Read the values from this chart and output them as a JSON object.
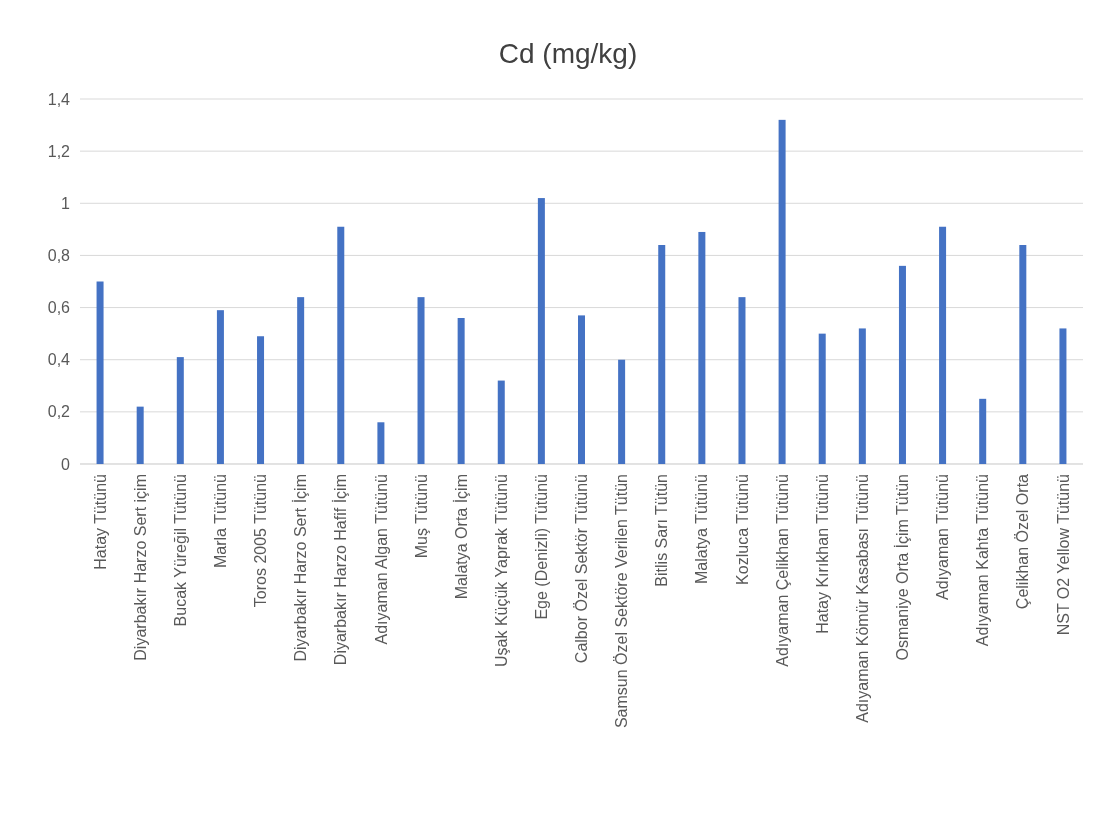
{
  "chart_data": {
    "type": "bar",
    "title": "Cd (mg/kg)",
    "categories": [
      "Hatay Tütünü",
      "Diyarbakır Harzo Sert içim",
      "Bucak Yüreğil Tütünü",
      "Marla Tütünü",
      "Toros 2005 Tütünü",
      "Diyarbakır Harzo Sert İçim",
      "Diyarbakır Harzo Hafif İçim",
      "Adıyaman Algan Tütünü",
      "Muş Tütünü",
      "Malatya Orta İçim",
      "Uşak Küçük Yaprak Tütünü",
      "Ege (Denizli) Tütünü",
      "Calbor Özel Sektör Tütünü",
      "Samsun Özel Sektöre Verilen Tütün",
      "Bitlis Sarı Tütün",
      "Malatya Tütünü",
      "Kozluca Tütünü",
      "Adıyaman Çelikhan Tütünü",
      "Hatay Kırıkhan Tütünü",
      "Adıyaman Kömür Kasabası Tütünü",
      "Osmaniye Orta İçim Tütün",
      "Adıyaman Tütünü",
      "Adıyaman Kahta Tütünü",
      "Çelikhan Özel Orta",
      "NST O2 Yellow Tütünü"
    ],
    "values": [
      0.7,
      0.22,
      0.41,
      0.59,
      0.49,
      0.64,
      0.91,
      0.16,
      0.64,
      0.56,
      0.32,
      1.02,
      0.57,
      0.4,
      0.84,
      0.89,
      0.64,
      1.32,
      0.5,
      0.52,
      0.76,
      0.91,
      0.25,
      0.84,
      0.52
    ],
    "color": "#4472c4",
    "ylim": [
      0,
      1.4
    ],
    "yticks": [
      {
        "value": 0,
        "label": "0"
      },
      {
        "value": 0.2,
        "label": "0,2"
      },
      {
        "value": 0.4,
        "label": "0,4"
      },
      {
        "value": 0.6,
        "label": "0,6"
      },
      {
        "value": 0.8,
        "label": "0,8"
      },
      {
        "value": 1,
        "label": "1"
      },
      {
        "value": 1.2,
        "label": "1,2"
      },
      {
        "value": 1.4,
        "label": "1,4"
      }
    ],
    "grid": "y"
  }
}
